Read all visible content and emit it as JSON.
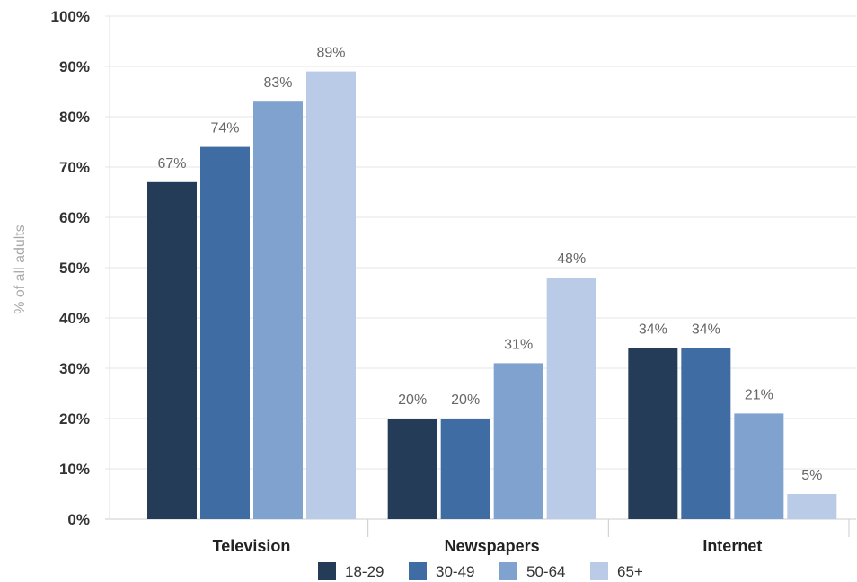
{
  "chart_data": {
    "type": "bar",
    "title": "",
    "xlabel": "",
    "ylabel": "% of all adults",
    "ylim": [
      0,
      100
    ],
    "ytick_labels": [
      "0%",
      "10%",
      "20%",
      "30%",
      "40%",
      "50%",
      "60%",
      "70%",
      "80%",
      "90%",
      "100%"
    ],
    "categories": [
      "Television",
      "Newspapers",
      "Internet"
    ],
    "series": [
      {
        "name": "18-29",
        "color": "#243c57",
        "values": [
          67,
          20,
          34
        ],
        "labels": [
          "67%",
          "20%",
          "34%"
        ]
      },
      {
        "name": "30-49",
        "color": "#3f6ca3",
        "values": [
          74,
          20,
          34
        ],
        "labels": [
          "74%",
          "20%",
          "34%"
        ]
      },
      {
        "name": "50-64",
        "color": "#7fa2cf",
        "values": [
          83,
          31,
          21
        ],
        "labels": [
          "83%",
          "31%",
          "21%"
        ]
      },
      {
        "name": "65+",
        "color": "#b9cbe6",
        "values": [
          89,
          48,
          5
        ],
        "labels": [
          "89%",
          "48%",
          "5%"
        ]
      }
    ],
    "grid": true,
    "legend_position": "bottom"
  }
}
